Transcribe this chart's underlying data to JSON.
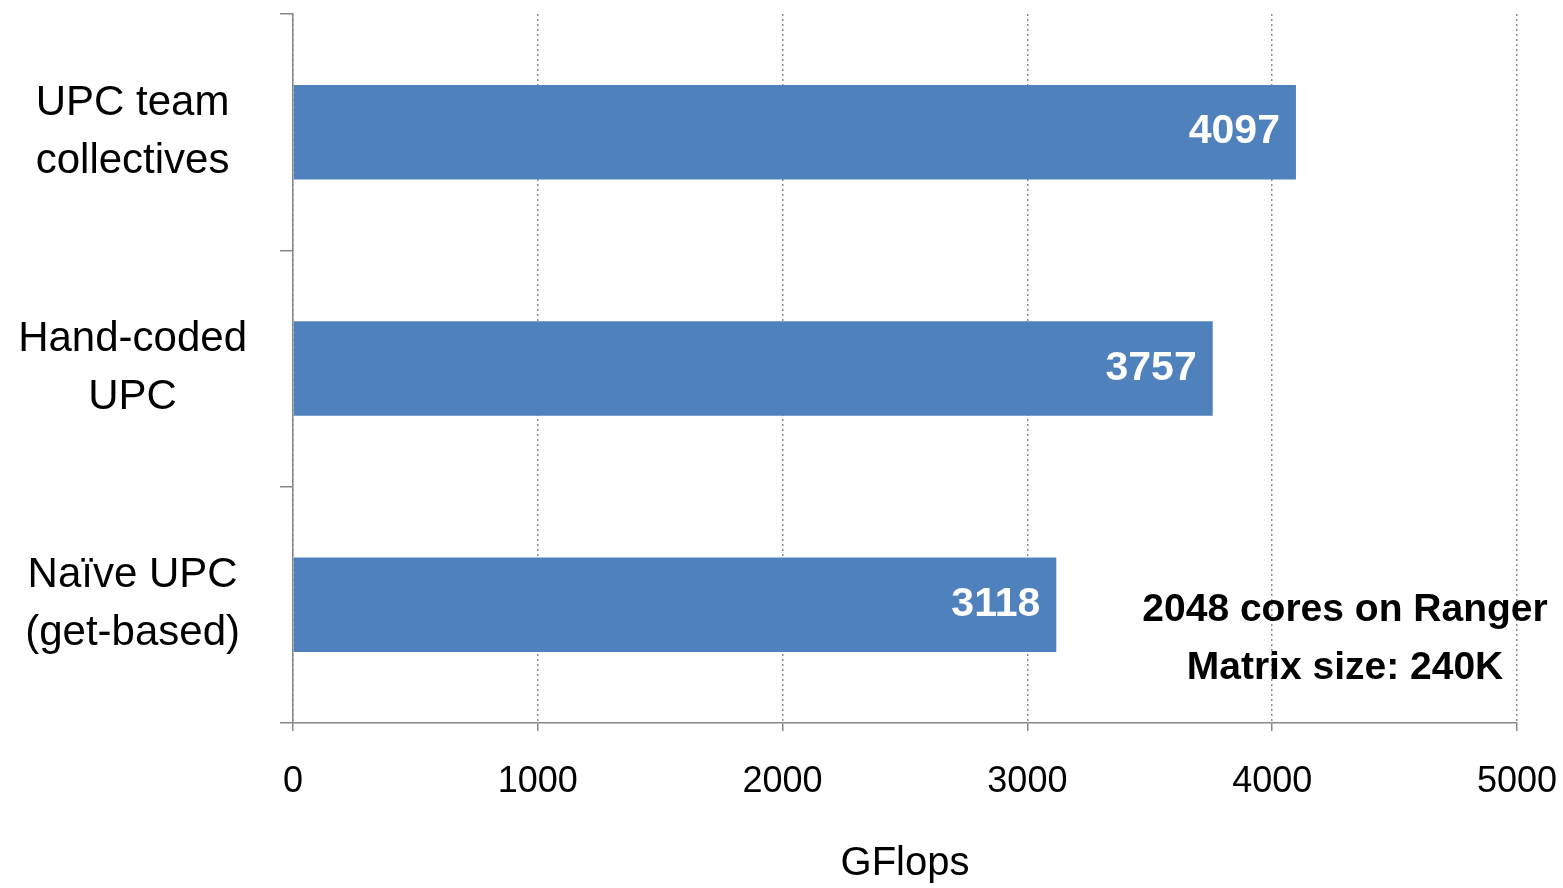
{
  "chart_data": {
    "type": "bar",
    "orientation": "horizontal",
    "categories": [
      "UPC team collectives",
      "Hand-coded UPC",
      "Naïve UPC (get-based)"
    ],
    "values": [
      4097,
      3757,
      3118
    ],
    "color": "#4f81bd",
    "xlim": [
      0,
      5000
    ],
    "xticks": [
      0,
      1000,
      2000,
      3000,
      4000,
      5000
    ],
    "xlabel": "GFlops",
    "grid": "x",
    "data_labels": true,
    "annotations": [
      "2048 cores on Ranger",
      "Matrix size: 240K"
    ]
  }
}
